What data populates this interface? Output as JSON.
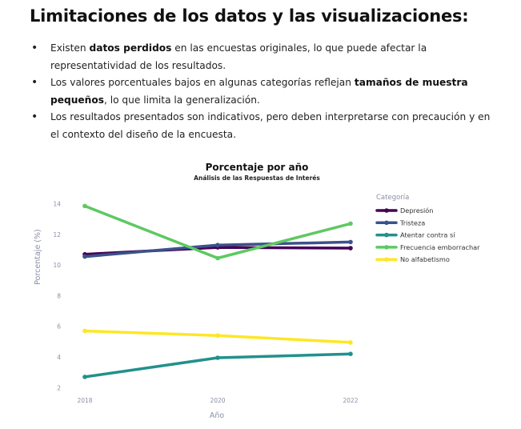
{
  "heading": "Limitaciones de los datos y las visualizaciones:",
  "bullets": [
    {
      "pre": "Existen ",
      "bold": "datos perdidos",
      "post": " en las encuestas originales, lo que puede afectar la representatividad de los resultados."
    },
    {
      "pre": "Los valores porcentuales bajos en algunas categorías reflejan ",
      "bold": "tamaños de muestra pequeños",
      "post": ", lo que limita la generalización."
    },
    {
      "pre": "Los resultados presentados son indicativos, pero deben interpretarse con precaución y en el contexto del diseño de la encuesta.",
      "bold": "",
      "post": ""
    }
  ],
  "bullet_glyph": "•",
  "chart_data": {
    "type": "line",
    "title": "Porcentaje por año",
    "subtitle": "Análisis de las Respuestas de Interés",
    "xlabel": "Año",
    "ylabel": "Porcentaje (%)",
    "x": [
      2018,
      2020,
      2022
    ],
    "x_ticks": [
      "2018",
      "2020",
      "2022"
    ],
    "y_ticks": [
      2,
      4,
      6,
      8,
      10,
      12,
      14
    ],
    "ylim": [
      1.6,
      14.6
    ],
    "grid": false,
    "legend_title": "Categoría",
    "legend_position": "right",
    "series": [
      {
        "name": "Depresión",
        "color": "#440154",
        "values": [
          10.7,
          11.15,
          11.1
        ]
      },
      {
        "name": "Tristeza",
        "color": "#3b528b",
        "values": [
          10.55,
          11.3,
          11.5
        ]
      },
      {
        "name": "Atentar contra sí",
        "color": "#21918c",
        "values": [
          2.7,
          3.95,
          4.2
        ]
      },
      {
        "name": "Frecuencia emborrachar",
        "color": "#5ec962",
        "values": [
          13.85,
          10.45,
          12.7
        ]
      },
      {
        "name": "No alfabetismo",
        "color": "#fde725",
        "values": [
          5.7,
          5.4,
          4.95
        ]
      }
    ]
  }
}
